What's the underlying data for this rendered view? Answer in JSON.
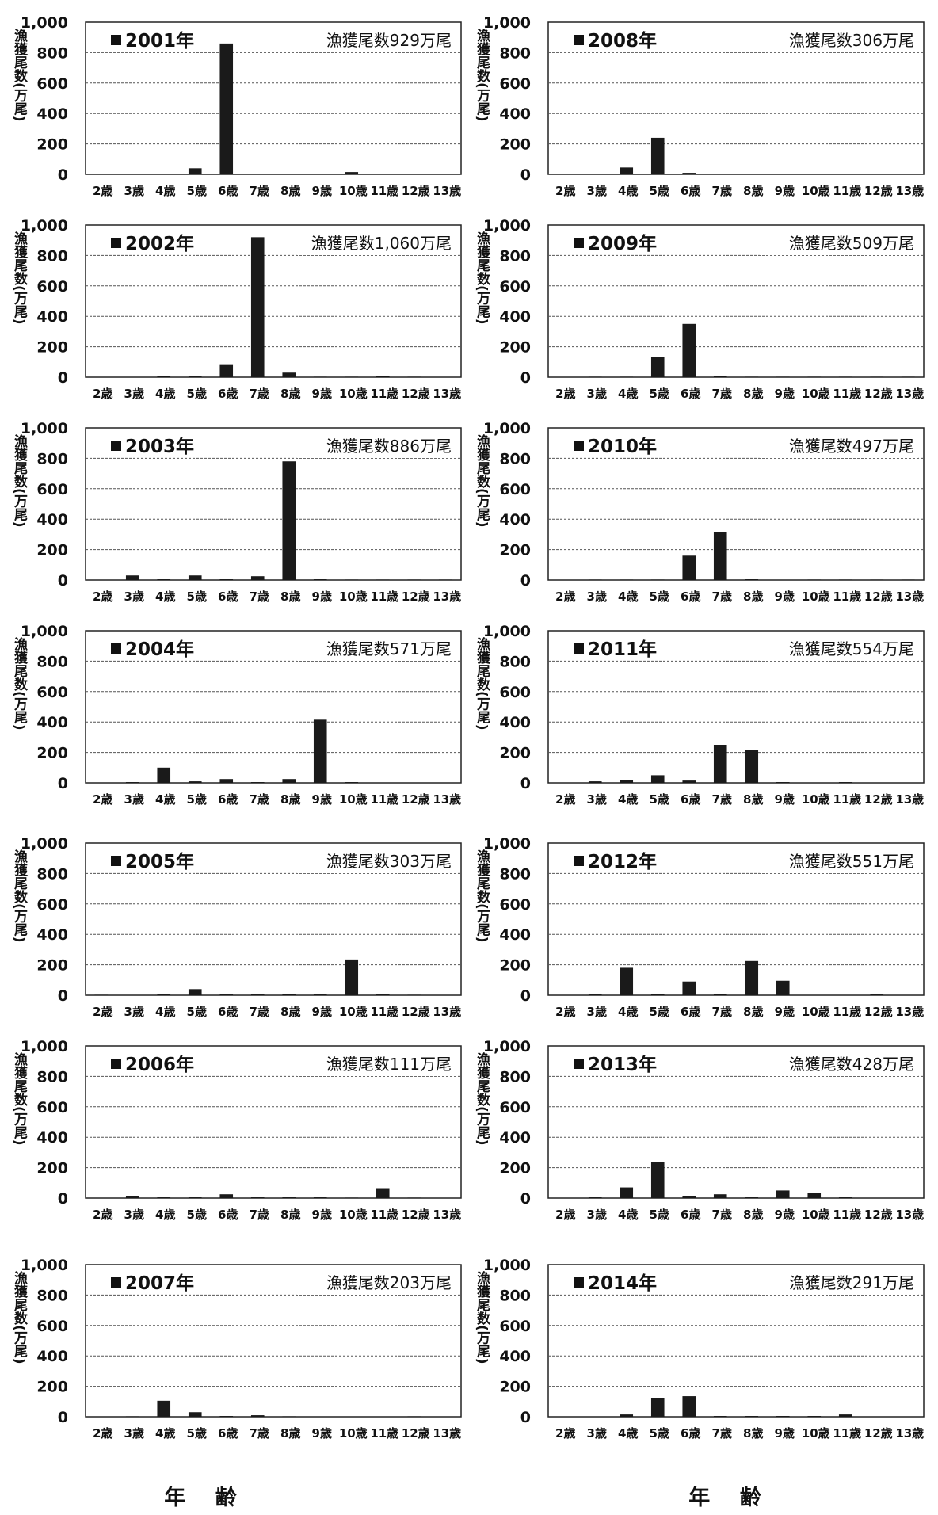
{
  "figure": {
    "x_axis_label_left": "年 齢",
    "x_axis_label_right": "年 齢"
  },
  "common": {
    "y_axis_label": "漁獲尾数(万尾)",
    "y_ticks": [
      "0",
      "200",
      "400",
      "600",
      "800",
      "1,000"
    ],
    "ages": [
      "2歳",
      "3歳",
      "4歳",
      "5歳",
      "6歳",
      "7歳",
      "8歳",
      "9歳",
      "10歳",
      "11歳",
      "12歳",
      "13歳"
    ]
  },
  "chart_data": [
    {
      "type": "bar",
      "title": "2001年",
      "annotation": "漁獲尾数929万尾",
      "ylabel": "漁獲尾数(万尾)",
      "ylim": [
        0,
        1000
      ],
      "grid": true,
      "categories": [
        "2歳",
        "3歳",
        "4歳",
        "5歳",
        "6歳",
        "7歳",
        "8歳",
        "9歳",
        "10歳",
        "11歳",
        "12歳",
        "13歳"
      ],
      "values": [
        0,
        5,
        0,
        40,
        860,
        5,
        3,
        3,
        15,
        0,
        3,
        0
      ]
    },
    {
      "type": "bar",
      "title": "2008年",
      "annotation": "漁獲尾数306万尾",
      "ylabel": "漁獲尾数(万尾)",
      "ylim": [
        0,
        1000
      ],
      "grid": true,
      "categories": [
        "2歳",
        "3歳",
        "4歳",
        "5歳",
        "6歳",
        "7歳",
        "8歳",
        "9歳",
        "10歳",
        "11歳",
        "12歳",
        "13歳"
      ],
      "values": [
        0,
        5,
        45,
        240,
        10,
        3,
        3,
        3,
        3,
        3,
        3,
        3
      ]
    },
    {
      "type": "bar",
      "title": "2002年",
      "annotation": "漁獲尾数1,060万尾",
      "ylabel": "漁獲尾数(万尾)",
      "ylim": [
        0,
        1000
      ],
      "grid": true,
      "categories": [
        "2歳",
        "3歳",
        "4歳",
        "5歳",
        "6歳",
        "7歳",
        "8歳",
        "9歳",
        "10歳",
        "11歳",
        "12歳",
        "13歳"
      ],
      "values": [
        0,
        0,
        10,
        5,
        80,
        920,
        30,
        3,
        3,
        10,
        3,
        0
      ]
    },
    {
      "type": "bar",
      "title": "2009年",
      "annotation": "漁獲尾数509万尾",
      "ylabel": "漁獲尾数(万尾)",
      "ylim": [
        0,
        1000
      ],
      "grid": true,
      "categories": [
        "2歳",
        "3歳",
        "4歳",
        "5歳",
        "6歳",
        "7歳",
        "8歳",
        "9歳",
        "10歳",
        "11歳",
        "12歳",
        "13歳"
      ],
      "values": [
        0,
        3,
        3,
        135,
        350,
        10,
        3,
        3,
        3,
        3,
        3,
        3
      ]
    },
    {
      "type": "bar",
      "title": "2003年",
      "annotation": "漁獲尾数886万尾",
      "ylabel": "漁獲尾数(万尾)",
      "ylim": [
        0,
        1000
      ],
      "grid": true,
      "categories": [
        "2歳",
        "3歳",
        "4歳",
        "5歳",
        "6歳",
        "7歳",
        "8歳",
        "9歳",
        "10歳",
        "11歳",
        "12歳",
        "13歳"
      ],
      "values": [
        0,
        30,
        5,
        30,
        5,
        25,
        780,
        5,
        3,
        3,
        3,
        3
      ]
    },
    {
      "type": "bar",
      "title": "2010年",
      "annotation": "漁獲尾数497万尾",
      "ylabel": "漁獲尾数(万尾)",
      "ylim": [
        0,
        1000
      ],
      "grid": true,
      "categories": [
        "2歳",
        "3歳",
        "4歳",
        "5歳",
        "6歳",
        "7歳",
        "8歳",
        "9歳",
        "10歳",
        "11歳",
        "12歳",
        "13歳"
      ],
      "values": [
        0,
        3,
        3,
        3,
        160,
        315,
        5,
        0,
        3,
        3,
        3,
        3
      ]
    },
    {
      "type": "bar",
      "title": "2004年",
      "annotation": "漁獲尾数571万尾",
      "ylabel": "漁獲尾数(万尾)",
      "ylim": [
        0,
        1000
      ],
      "grid": true,
      "categories": [
        "2歳",
        "3歳",
        "4歳",
        "5歳",
        "6歳",
        "7歳",
        "8歳",
        "9歳",
        "10歳",
        "11歳",
        "12歳",
        "13歳"
      ],
      "values": [
        0,
        5,
        100,
        10,
        25,
        5,
        25,
        415,
        5,
        0,
        0,
        0
      ]
    },
    {
      "type": "bar",
      "title": "2011年",
      "annotation": "漁獲尾数554万尾",
      "ylabel": "漁獲尾数(万尾)",
      "ylim": [
        0,
        1000
      ],
      "grid": true,
      "categories": [
        "2歳",
        "3歳",
        "4歳",
        "5歳",
        "6歳",
        "7歳",
        "8歳",
        "9歳",
        "10歳",
        "11歳",
        "12歳",
        "13歳"
      ],
      "values": [
        0,
        10,
        20,
        50,
        15,
        250,
        215,
        5,
        0,
        5,
        0,
        0
      ]
    },
    {
      "type": "bar",
      "title": "2005年",
      "annotation": "漁獲尾数303万尾",
      "ylabel": "漁獲尾数(万尾)",
      "ylim": [
        0,
        1000
      ],
      "grid": true,
      "categories": [
        "2歳",
        "3歳",
        "4歳",
        "5歳",
        "6歳",
        "7歳",
        "8歳",
        "9歳",
        "10歳",
        "11歳",
        "12歳",
        "13歳"
      ],
      "values": [
        3,
        0,
        5,
        40,
        5,
        5,
        10,
        5,
        235,
        5,
        3,
        0
      ]
    },
    {
      "type": "bar",
      "title": "2012年",
      "annotation": "漁獲尾数551万尾",
      "ylabel": "漁獲尾数(万尾)",
      "ylim": [
        0,
        1000
      ],
      "grid": true,
      "categories": [
        "2歳",
        "3歳",
        "4歳",
        "5歳",
        "6歳",
        "7歳",
        "8歳",
        "9歳",
        "10歳",
        "11歳",
        "12歳",
        "13歳"
      ],
      "values": [
        0,
        5,
        180,
        10,
        90,
        10,
        225,
        95,
        0,
        0,
        5,
        0
      ]
    },
    {
      "type": "bar",
      "title": "2006年",
      "annotation": "漁獲尾数111万尾",
      "ylabel": "漁獲尾数(万尾)",
      "ylim": [
        0,
        1000
      ],
      "grid": true,
      "categories": [
        "2歳",
        "3歳",
        "4歳",
        "5歳",
        "6歳",
        "7歳",
        "8歳",
        "9歳",
        "10歳",
        "11歳",
        "12歳",
        "13歳"
      ],
      "values": [
        0,
        15,
        5,
        5,
        25,
        5,
        5,
        5,
        3,
        65,
        3,
        0
      ]
    },
    {
      "type": "bar",
      "title": "2013年",
      "annotation": "漁獲尾数428万尾",
      "ylabel": "漁獲尾数(万尾)",
      "ylim": [
        0,
        1000
      ],
      "grid": true,
      "categories": [
        "2歳",
        "3歳",
        "4歳",
        "5歳",
        "6歳",
        "7歳",
        "8歳",
        "9歳",
        "10歳",
        "11歳",
        "12歳",
        "13歳"
      ],
      "values": [
        0,
        5,
        70,
        235,
        15,
        25,
        5,
        50,
        35,
        5,
        0,
        0
      ]
    },
    {
      "type": "bar",
      "title": "2007年",
      "annotation": "漁獲尾数203万尾",
      "ylabel": "漁獲尾数(万尾)",
      "ylim": [
        0,
        1000
      ],
      "grid": true,
      "categories": [
        "2歳",
        "3歳",
        "4歳",
        "5歳",
        "6歳",
        "7歳",
        "8歳",
        "9歳",
        "10歳",
        "11歳",
        "12歳",
        "13歳"
      ],
      "values": [
        0,
        3,
        105,
        30,
        5,
        10,
        3,
        0,
        0,
        0,
        3,
        0
      ]
    },
    {
      "type": "bar",
      "title": "2014年",
      "annotation": "漁獲尾数291万尾",
      "ylabel": "漁獲尾数(万尾)",
      "ylim": [
        0,
        1000
      ],
      "grid": true,
      "categories": [
        "2歳",
        "3歳",
        "4歳",
        "5歳",
        "6歳",
        "7歳",
        "8歳",
        "9歳",
        "10歳",
        "11歳",
        "12歳",
        "13歳"
      ],
      "values": [
        0,
        0,
        15,
        125,
        135,
        5,
        5,
        5,
        5,
        15,
        0,
        0
      ]
    }
  ]
}
